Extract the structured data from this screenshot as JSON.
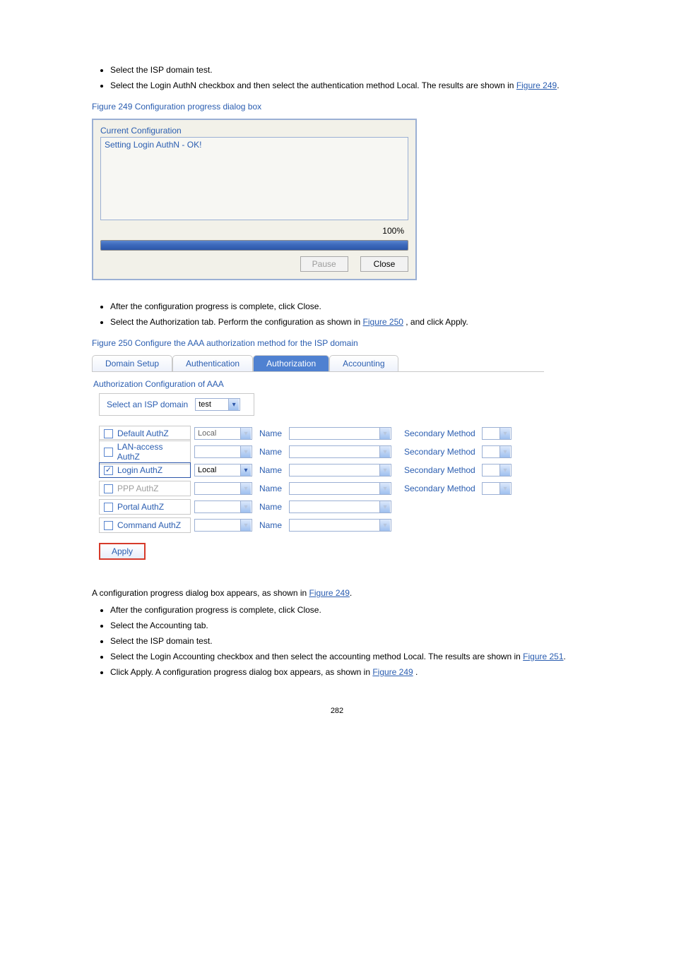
{
  "steps_top": [
    "Select the ISP domain test.",
    "Select the Login AuthN checkbox and then select the authentication method Local. The results are shown in "
  ],
  "fig249_link": "Figure 249",
  "fig249_caption": "Figure 249 Configuration progress dialog box",
  "dialog": {
    "title": "Current Configuration",
    "log": "Setting Login AuthN - OK!",
    "percent": "100%",
    "pause": "Pause",
    "close": "Close"
  },
  "mid_list": [
    "After the configuration progress is complete, click Close.",
    {
      "pre": "Select the Authorization tab. Perform the configuration as shown in ",
      "link": "Figure 250",
      "post": ", and click Apply."
    }
  ],
  "fig250_caption": "Figure 250 Configure the AAA authorization method for the ISP domain",
  "tabs": [
    "Domain Setup",
    "Authentication",
    "Authorization",
    "Accounting"
  ],
  "section_title": "Authorization Configuration of AAA",
  "isp_label": "Select an ISP domain",
  "isp_value": "test",
  "col_name": "Name",
  "col_secondary": "Secondary Method",
  "rows": [
    {
      "label": "Default AuthZ",
      "checked": false,
      "dim": false,
      "method": "Local",
      "method_enabled": false,
      "show_secondary": true
    },
    {
      "label": "LAN-access AuthZ",
      "checked": false,
      "dim": false,
      "method": "",
      "method_enabled": false,
      "show_secondary": true
    },
    {
      "label": "Login AuthZ",
      "checked": true,
      "dim": false,
      "method": "Local",
      "method_enabled": true,
      "show_secondary": true,
      "highlight": true
    },
    {
      "label": "PPP AuthZ",
      "checked": false,
      "dim": true,
      "method": "",
      "method_enabled": false,
      "show_secondary": true
    },
    {
      "label": "Portal AuthZ",
      "checked": false,
      "dim": false,
      "method": "",
      "method_enabled": false,
      "show_secondary": false
    },
    {
      "label": "Command AuthZ",
      "checked": false,
      "dim": false,
      "method": "",
      "method_enabled": false,
      "show_secondary": false
    }
  ],
  "apply": "Apply",
  "after_apply_link": "Figure 249",
  "after_apply_pre": "A configuration progress dialog box appears, as shown in ",
  "bottom_list": [
    "After the configuration progress is complete, click Close.",
    "Select the Accounting tab.",
    "Select the ISP domain test.",
    "Select the Login Accounting checkbox and then select the accounting method Local. The results are shown in ",
    {
      "pre": "Click Apply. A configuration progress dialog box appears, as shown in ",
      "link": "Figure 249",
      "post": "."
    }
  ],
  "fig251_link": "Figure 251",
  "page_number": "282"
}
